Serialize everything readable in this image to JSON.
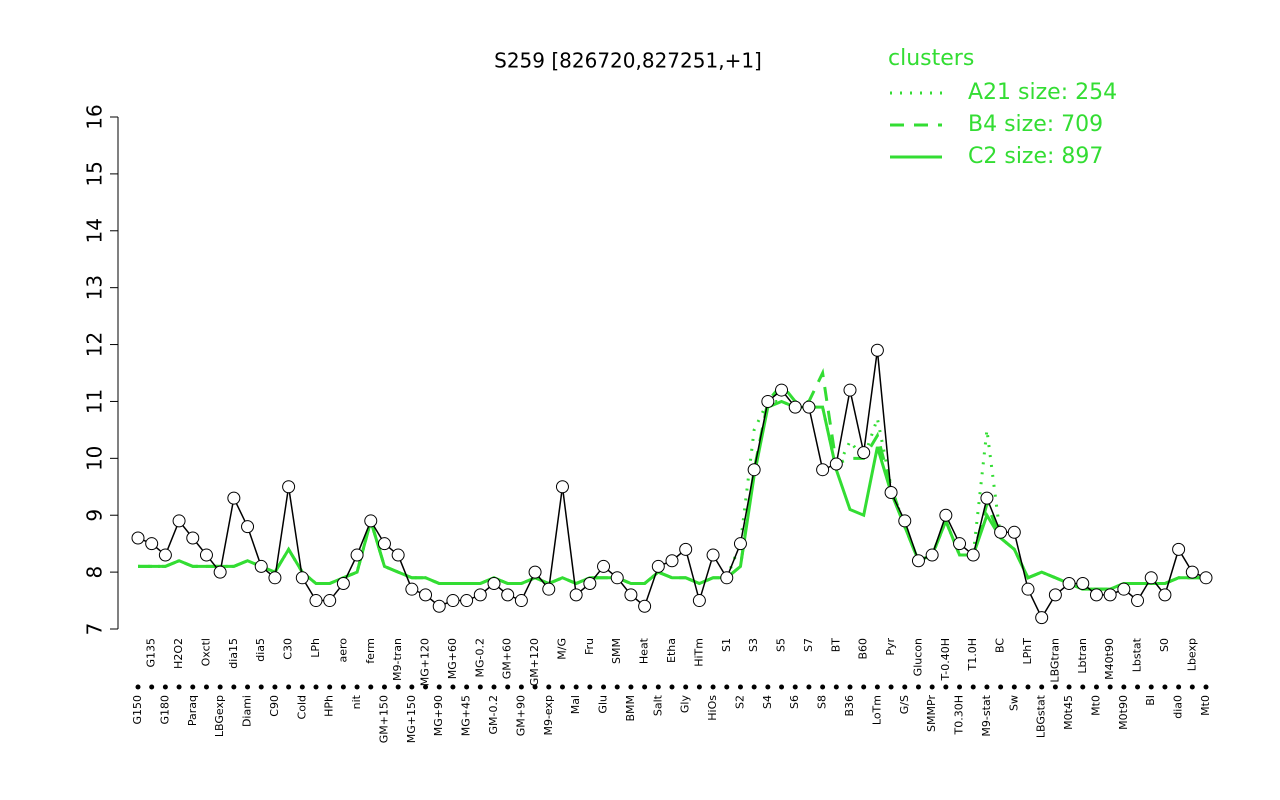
{
  "chart_data": {
    "type": "line",
    "title": "S259 [826720,827251,+1]",
    "legend_title": "clusters",
    "categories": [
      "G150",
      "G135",
      "G180",
      "H2O2",
      "Paraq",
      "Oxctl",
      "LBGexp",
      "dia15",
      "Diami",
      "dia5",
      "C90",
      "C30",
      "Cold",
      "LPh",
      "HPh",
      "aero",
      "nit",
      "ferm",
      "GM+150",
      "M9-tran",
      "MG+150",
      "MG+120",
      "MG+90",
      "MG+60",
      "MG+45",
      "MG-0.2",
      "GM-0.2",
      "GM+60",
      "GM+90",
      "GM+120",
      "M9-exp",
      "M/G",
      "Mal",
      "Fru",
      "Glu",
      "SMM",
      "BMM",
      "Heat",
      "Salt",
      "Etha",
      "Gly",
      "HiTm",
      "HiOs",
      "S1",
      "S2",
      "S3",
      "S4",
      "S5",
      "S6",
      "S7",
      "S8",
      "BT",
      "B36",
      "B60",
      "LoTm",
      "Pyr",
      "G/S",
      "Glucon",
      "SMMPr",
      "T-0.40H",
      "T0.30H",
      "T1.0H",
      "M9-stat",
      "BC",
      "Sw",
      "LPhT",
      "LBGstat",
      "LBGtran",
      "M0t45",
      "Lbtran",
      "Mt0",
      "M40t90",
      "M0t90",
      "Lbstat",
      "BI",
      "S0",
      "dia0",
      "Lbexp",
      "Mt0"
    ],
    "values": [
      8.6,
      8.5,
      8.3,
      8.9,
      8.6,
      8.3,
      8.0,
      9.3,
      8.8,
      8.1,
      7.9,
      9.5,
      7.9,
      7.5,
      7.5,
      7.8,
      8.3,
      8.9,
      8.5,
      8.3,
      7.7,
      7.6,
      7.4,
      7.5,
      7.5,
      7.6,
      7.8,
      7.6,
      7.5,
      8.0,
      7.7,
      9.5,
      7.6,
      7.8,
      8.1,
      7.9,
      7.6,
      7.4,
      8.1,
      8.2,
      8.4,
      7.5,
      8.3,
      7.9,
      8.5,
      9.8,
      11.0,
      11.2,
      10.9,
      10.9,
      9.8,
      9.9,
      11.2,
      10.1,
      11.9,
      9.4,
      8.9,
      8.2,
      8.3,
      9.0,
      8.5,
      8.3,
      9.3,
      8.7,
      8.7,
      7.7,
      7.2,
      7.6,
      7.8,
      7.8,
      7.6,
      7.6,
      7.7,
      7.5,
      7.9,
      7.6,
      8.4,
      8.0,
      7.9
    ],
    "point_color": "#000000",
    "series": [
      {
        "name": "A21 size: 254",
        "color": "#33dd33",
        "dash": "dotted",
        "values": [
          8.1,
          8.1,
          8.1,
          8.2,
          8.1,
          8.1,
          8.1,
          8.1,
          8.2,
          8.1,
          8.0,
          8.4,
          8.0,
          7.8,
          7.8,
          7.9,
          8.0,
          8.9,
          8.1,
          8.0,
          7.9,
          7.9,
          7.8,
          7.8,
          7.8,
          7.8,
          7.9,
          7.8,
          7.8,
          7.9,
          7.8,
          7.9,
          7.8,
          7.9,
          7.9,
          7.9,
          7.8,
          7.8,
          8.0,
          7.9,
          7.9,
          7.8,
          7.9,
          7.9,
          8.5,
          10.5,
          11.0,
          11.0,
          10.9,
          10.9,
          10.9,
          9.8,
          10.3,
          10.0,
          10.7,
          9.5,
          8.8,
          8.2,
          8.3,
          8.9,
          8.3,
          8.3,
          10.5,
          8.6,
          8.4,
          7.9,
          8.0,
          7.9,
          7.8,
          7.7,
          7.7,
          7.7,
          7.8,
          7.8,
          7.8,
          7.8,
          7.9,
          7.9,
          7.9
        ]
      },
      {
        "name": "B4 size: 709",
        "color": "#33dd33",
        "dash": "dashed",
        "values": [
          8.1,
          8.1,
          8.1,
          8.2,
          8.1,
          8.1,
          8.1,
          8.1,
          8.2,
          8.1,
          8.0,
          8.4,
          8.0,
          7.8,
          7.8,
          7.9,
          8.0,
          8.9,
          8.1,
          8.0,
          7.9,
          7.9,
          7.8,
          7.8,
          7.8,
          7.8,
          7.9,
          7.8,
          7.8,
          7.9,
          7.8,
          7.9,
          7.8,
          7.9,
          7.9,
          7.9,
          7.8,
          7.8,
          8.0,
          7.9,
          7.9,
          7.8,
          7.9,
          7.9,
          8.1,
          9.8,
          11.0,
          11.3,
          11.0,
          11.0,
          11.5,
          9.9,
          10.0,
          10.0,
          10.4,
          9.5,
          8.8,
          8.2,
          8.3,
          8.9,
          8.3,
          8.3,
          9.2,
          8.6,
          8.4,
          7.9,
          8.0,
          7.9,
          7.8,
          7.7,
          7.7,
          7.7,
          7.8,
          7.8,
          7.8,
          7.8,
          7.9,
          7.9,
          7.9
        ]
      },
      {
        "name": "C2 size: 897",
        "color": "#33dd33",
        "dash": "solid",
        "values": [
          8.1,
          8.1,
          8.1,
          8.2,
          8.1,
          8.1,
          8.1,
          8.1,
          8.2,
          8.1,
          8.0,
          8.4,
          8.0,
          7.8,
          7.8,
          7.9,
          8.0,
          8.9,
          8.1,
          8.0,
          7.9,
          7.9,
          7.8,
          7.8,
          7.8,
          7.8,
          7.9,
          7.8,
          7.8,
          7.9,
          7.8,
          7.9,
          7.8,
          7.9,
          7.9,
          7.9,
          7.8,
          7.8,
          8.0,
          7.9,
          7.9,
          7.8,
          7.9,
          7.9,
          8.1,
          9.7,
          10.9,
          11.0,
          10.9,
          10.9,
          10.9,
          9.8,
          9.1,
          9.0,
          10.2,
          9.4,
          8.8,
          8.2,
          8.3,
          8.9,
          8.3,
          8.3,
          9.0,
          8.6,
          8.4,
          7.9,
          8.0,
          7.9,
          7.8,
          7.7,
          7.7,
          7.7,
          7.8,
          7.8,
          7.8,
          7.8,
          7.9,
          7.9,
          7.9
        ]
      }
    ],
    "ylim": [
      7,
      16
    ],
    "yticks": [
      7,
      8,
      9,
      10,
      11,
      12,
      13,
      14,
      15,
      16
    ]
  }
}
